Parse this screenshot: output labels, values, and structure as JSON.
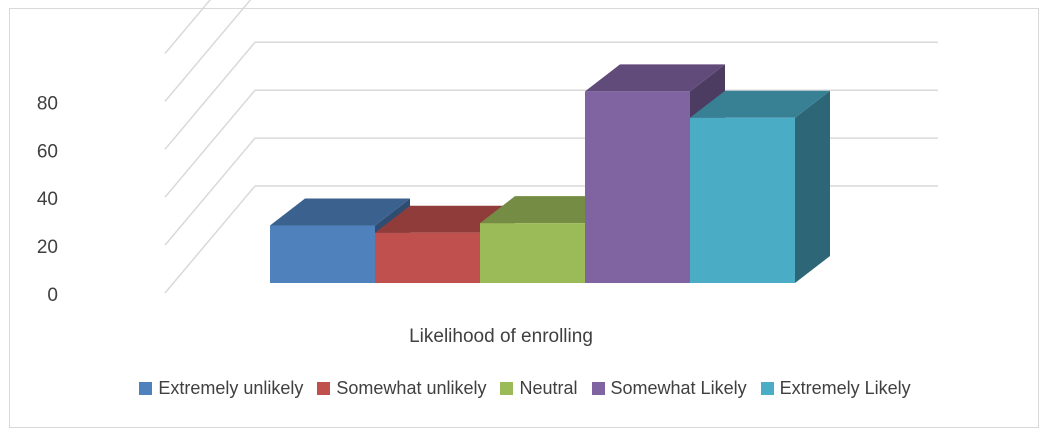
{
  "chart_data": {
    "type": "bar",
    "style": "3d-clustered-column",
    "categories": [
      "Likelihood of enrolling"
    ],
    "series": [
      {
        "name": "Extremely unlikely",
        "values": [
          24
        ],
        "color": "#4F81BD"
      },
      {
        "name": "Somewhat unlikely",
        "values": [
          21
        ],
        "color": "#C0504D"
      },
      {
        "name": "Neutral",
        "values": [
          25
        ],
        "color": "#9BBB59"
      },
      {
        "name": "Somewhat Likely",
        "values": [
          80
        ],
        "color": "#8064A2"
      },
      {
        "name": "Extremely Likely",
        "values": [
          69
        ],
        "color": "#4BACC6"
      }
    ],
    "yticks": [
      0,
      20,
      40,
      60,
      80
    ],
    "ylim": [
      0,
      100
    ],
    "grid": true,
    "legend_position": "bottom",
    "title": "",
    "xlabel": "",
    "ylabel": ""
  }
}
